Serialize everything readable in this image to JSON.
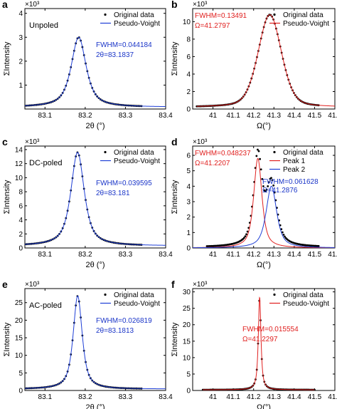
{
  "colors": {
    "original": "#000000",
    "fit_blue": "#1f3fd6",
    "fit_red": "#e0201f",
    "ann_blue": "#1a35c8",
    "ann_red": "#e0201f",
    "axis": "#000000"
  },
  "chart_data": [
    {
      "panel": "a",
      "type": "scatter+line",
      "title": "",
      "xlabel": "2θ (°)",
      "ylabel": "ΣIntensity",
      "yexp": "×10³",
      "xlim": [
        83.05,
        83.4
      ],
      "ylim": [
        0,
        4.2
      ],
      "xticks": [
        83.1,
        83.2,
        83.3,
        83.4
      ],
      "yticks": [
        1,
        2,
        3,
        4
      ],
      "xtick_labels": [
        "83.1",
        "83.2",
        "83.3",
        "83.4"
      ],
      "ytick_labels": [
        "1",
        "2",
        "3",
        "4"
      ],
      "label": "Unpoled",
      "legend": [
        "Original data",
        "Pseudo-Voight"
      ],
      "annotation": [
        "FWHM=0.044184",
        "2θ=83.1837"
      ],
      "ann_color": "blue",
      "series": [
        {
          "name": "Original data",
          "kind": "points",
          "center": 83.1837,
          "fwhm": 0.044184,
          "amp": 2.92,
          "base": 0.08,
          "eta": 0.75,
          "x_start": 83.05,
          "x_end": 83.34,
          "n": 72
        },
        {
          "name": "Pseudo-Voight",
          "kind": "line",
          "color": "blue",
          "center": 83.1837,
          "fwhm": 0.044184,
          "amp": 2.92,
          "base": 0.08,
          "eta": 0.75,
          "x_start": 83.05,
          "x_end": 83.4
        }
      ]
    },
    {
      "panel": "b",
      "type": "scatter+line",
      "title": "",
      "xlabel": "Ω(°)",
      "ylabel": "ΣIntensity",
      "yexp": "×10³",
      "xlim": [
        40.9,
        41.6
      ],
      "ylim": [
        0,
        11.5
      ],
      "xticks": [
        41,
        41.1,
        41.2,
        41.3,
        41.4,
        41.5,
        41.6
      ],
      "yticks": [
        0,
        2,
        4,
        6,
        8,
        10
      ],
      "xtick_labels": [
        "41",
        "41.1",
        "41.2",
        "41.3",
        "41.4",
        "41.5",
        "41.6"
      ],
      "ytick_labels": [
        "0",
        "2",
        "4",
        "6",
        "8",
        "10"
      ],
      "label": "",
      "legend": [
        "Original data",
        "Pseudo-Voight"
      ],
      "annotation": [
        "FWHM=0.13491",
        "Ω=41.2797"
      ],
      "ann_color": "red",
      "series": [
        {
          "name": "Original data",
          "kind": "points",
          "center": 41.2797,
          "fwhm": 0.13491,
          "amp": 10.6,
          "base": 0.2,
          "eta": 0.3,
          "x_start": 40.92,
          "x_end": 41.52,
          "n": 90
        },
        {
          "name": "Pseudo-Voight",
          "kind": "line",
          "color": "red",
          "center": 41.2797,
          "fwhm": 0.13491,
          "amp": 10.6,
          "base": 0.2,
          "eta": 0.3,
          "x_start": 40.92,
          "x_end": 41.6
        }
      ]
    },
    {
      "panel": "c",
      "type": "scatter+line",
      "title": "",
      "xlabel": "2θ (°)",
      "ylabel": "ΣIntensity",
      "yexp": "×10³",
      "xlim": [
        83.05,
        83.4
      ],
      "ylim": [
        0,
        14.5
      ],
      "xticks": [
        83.1,
        83.2,
        83.3,
        83.4
      ],
      "yticks": [
        0,
        2,
        4,
        6,
        8,
        10,
        12,
        14
      ],
      "xtick_labels": [
        "83.1",
        "83.2",
        "83.3",
        "83.4"
      ],
      "ytick_labels": [
        "0",
        "2",
        "4",
        "6",
        "8",
        "10",
        "12",
        "14"
      ],
      "label": "DC-poled",
      "legend": [
        "Original data",
        "Pseudo-Voight"
      ],
      "annotation": [
        "FWHM=0.039595",
        "2θ=83.181"
      ],
      "ann_color": "blue",
      "series": [
        {
          "name": "Original data",
          "kind": "points",
          "center": 83.181,
          "fwhm": 0.039595,
          "amp": 13.3,
          "base": 0.3,
          "eta": 0.75,
          "x_start": 83.05,
          "x_end": 83.34,
          "n": 72
        },
        {
          "name": "Pseudo-Voight",
          "kind": "line",
          "color": "blue",
          "center": 83.181,
          "fwhm": 0.039595,
          "amp": 13.3,
          "base": 0.3,
          "eta": 0.75,
          "x_start": 83.05,
          "x_end": 83.4
        }
      ]
    },
    {
      "panel": "d",
      "type": "scatter+line",
      "title": "",
      "xlabel": "Ω(°)",
      "ylabel": "ΣIntensity",
      "yexp": "×10³",
      "xlim": [
        40.9,
        41.6
      ],
      "ylim": [
        0,
        6.6
      ],
      "xticks": [
        41,
        41.1,
        41.2,
        41.3,
        41.4,
        41.5,
        41.6
      ],
      "yticks": [
        0,
        1,
        2,
        3,
        4,
        5,
        6
      ],
      "xtick_labels": [
        "41",
        "41.1",
        "41.2",
        "41.3",
        "41.4",
        "41.5",
        "41.6"
      ],
      "ytick_labels": [
        "0",
        "1",
        "2",
        "3",
        "4",
        "5",
        "6"
      ],
      "label": "",
      "legend": [
        "Original data",
        "Peak 1",
        "Peak 2"
      ],
      "annotation": [
        "FWHM=0.048237",
        "Ω=41.2207"
      ],
      "annotation2": [
        "FWHM=0.061628",
        "Ω=41.2876"
      ],
      "ann_color": "red",
      "ann2_color": "blue",
      "series": [
        {
          "name": "Original data",
          "kind": "points2",
          "n": 100,
          "x_start": 40.97,
          "x_end": 41.52,
          "peaks": [
            {
              "center": 41.2207,
              "fwhm": 0.048237,
              "amp": 5.8,
              "eta": 0.7
            },
            {
              "center": 41.2876,
              "fwhm": 0.061628,
              "amp": 4.0,
              "eta": 0.7
            }
          ],
          "base": 0.05
        },
        {
          "name": "Peak 1",
          "kind": "line",
          "color": "red",
          "center": 41.2207,
          "fwhm": 0.048237,
          "amp": 5.8,
          "base": 0.0,
          "eta": 0.7,
          "x_start": 40.9,
          "x_end": 41.6
        },
        {
          "name": "Peak 2",
          "kind": "line",
          "color": "blue",
          "center": 41.2876,
          "fwhm": 0.061628,
          "amp": 4.0,
          "base": 0.0,
          "eta": 0.7,
          "x_start": 40.9,
          "x_end": 41.6
        }
      ]
    },
    {
      "panel": "e",
      "type": "scatter+line",
      "title": "",
      "xlabel": "2θ (°)",
      "ylabel": "ΣIntensity",
      "yexp": "×10³",
      "xlim": [
        83.05,
        83.4
      ],
      "ylim": [
        0,
        29
      ],
      "xticks": [
        83.1,
        83.2,
        83.3,
        83.4
      ],
      "yticks": [
        0,
        5,
        10,
        15,
        20,
        25
      ],
      "xtick_labels": [
        "83.1",
        "83.2",
        "83.3",
        "83.4"
      ],
      "ytick_labels": [
        "0",
        "5",
        "10",
        "15",
        "20",
        "25"
      ],
      "label": "AC-poled",
      "legend": [
        "Original data",
        "Pseudo-Voight"
      ],
      "annotation": [
        "FWHM=0.026819",
        "2θ=83.1813"
      ],
      "ann_color": "blue",
      "series": [
        {
          "name": "Original data",
          "kind": "points",
          "center": 83.1813,
          "fwhm": 0.026819,
          "amp": 26.5,
          "base": 0.4,
          "eta": 0.75,
          "x_start": 83.05,
          "x_end": 83.34,
          "n": 72
        },
        {
          "name": "Pseudo-Voight",
          "kind": "line",
          "color": "blue",
          "center": 83.1813,
          "fwhm": 0.026819,
          "amp": 26.5,
          "base": 0.4,
          "eta": 0.75,
          "x_start": 83.05,
          "x_end": 83.4
        }
      ]
    },
    {
      "panel": "f",
      "type": "scatter+line",
      "title": "",
      "xlabel": "Ω(°)",
      "ylabel": "ΣIntensity",
      "yexp": "×10³",
      "xlim": [
        40.9,
        41.6
      ],
      "ylim": [
        0,
        31
      ],
      "xticks": [
        41,
        41.1,
        41.2,
        41.3,
        41.4,
        41.5,
        41.6
      ],
      "yticks": [
        0,
        5,
        10,
        15,
        20,
        25,
        30
      ],
      "xtick_labels": [
        "41",
        "41.1",
        "41.2",
        "41.3",
        "41.4",
        "41.5",
        "41.6"
      ],
      "ytick_labels": [
        "0",
        "5",
        "10",
        "15",
        "20",
        "25",
        "30"
      ],
      "label": "",
      "legend": [
        "Original data",
        "Pseudo-Voight"
      ],
      "annotation": [
        "FWHM=0.015554",
        "Ω=41.2297"
      ],
      "ann_color": "red",
      "series": [
        {
          "name": "Original data",
          "kind": "points",
          "center": 41.2297,
          "fwhm": 0.015554,
          "amp": 28.2,
          "base": 0.2,
          "eta": 0.85,
          "x_start": 40.95,
          "x_end": 41.5,
          "n": 90
        },
        {
          "name": "Pseudo-Voight",
          "kind": "line",
          "color": "red",
          "center": 41.2297,
          "fwhm": 0.015554,
          "amp": 28.2,
          "base": 0.2,
          "eta": 0.85,
          "x_start": 40.95,
          "x_end": 41.5
        }
      ]
    }
  ]
}
